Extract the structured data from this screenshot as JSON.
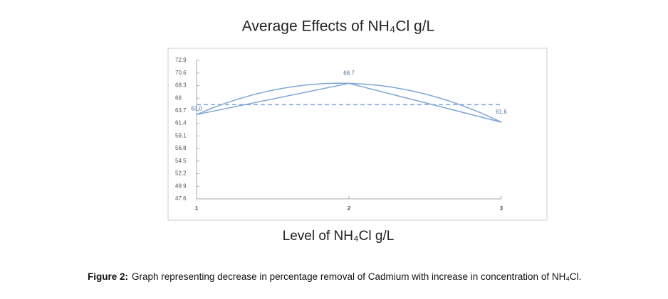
{
  "chart_data": {
    "type": "line",
    "title": "Average Effects of NH₄Cl g/L",
    "x_label": "Level of NH₄Cl g/L",
    "x": [
      1,
      2,
      3
    ],
    "values": [
      63.0,
      68.7,
      61.6
    ],
    "value_labels": [
      "63.0",
      "68.7",
      "61.6"
    ],
    "color": "#7ea6d8",
    "mean_line": 64.8,
    "xlim": [
      1,
      3
    ],
    "xticks": [
      1,
      2,
      3
    ],
    "ylim": [
      47.6,
      72.9
    ],
    "yticks": [
      47.6,
      49.9,
      52.2,
      54.5,
      56.8,
      59.1,
      61.4,
      63.7,
      66,
      68.3,
      70.6,
      72.9
    ]
  },
  "caption": {
    "label": "Figure 2:",
    "text": "Graph representing decrease in percentage removal of Cadmium with increase in concentration of NH₄Cl."
  }
}
